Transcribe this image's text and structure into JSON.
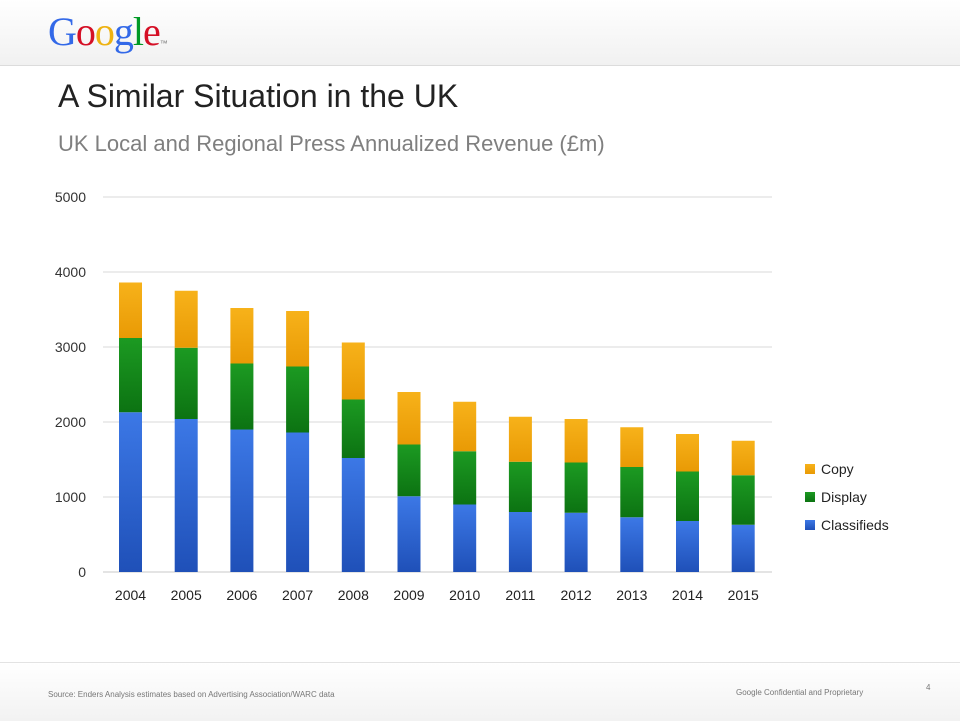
{
  "logo": {
    "letters": [
      {
        "char": "G",
        "color": "#3369e8"
      },
      {
        "char": "o",
        "color": "#d50f25"
      },
      {
        "char": "o",
        "color": "#eeb211"
      },
      {
        "char": "g",
        "color": "#3369e8"
      },
      {
        "char": "l",
        "color": "#009925"
      },
      {
        "char": "e",
        "color": "#d50f25"
      }
    ],
    "trademark": "™"
  },
  "slide": {
    "title": "A Similar Situation in the UK",
    "subtitle": "UK Local and Regional Press Annualized Revenue (£m)"
  },
  "footer": {
    "source": "Source: Enders Analysis estimates based on Advertising Association/WARC data",
    "confidential": "Google Confidential and Proprietary",
    "page_number": "4"
  },
  "chart_data": {
    "type": "bar",
    "stacked": true,
    "categories": [
      "2004",
      "2005",
      "2006",
      "2007",
      "2008",
      "2009",
      "2010",
      "2011",
      "2012",
      "2013",
      "2014",
      "2015"
    ],
    "series": [
      {
        "name": "Classifieds",
        "color": "#3366cc",
        "values": [
          2130,
          2040,
          1900,
          1860,
          1520,
          1010,
          900,
          800,
          790,
          730,
          680,
          630
        ]
      },
      {
        "name": "Display",
        "color": "#138a1a",
        "values": [
          990,
          950,
          880,
          880,
          780,
          690,
          710,
          670,
          670,
          670,
          660,
          660
        ]
      },
      {
        "name": "Copy",
        "color": "#f0a30a",
        "values": [
          740,
          760,
          740,
          740,
          760,
          700,
          660,
          600,
          580,
          530,
          500,
          460
        ]
      }
    ],
    "ylim": [
      0,
      5000
    ],
    "yticks": [
      0,
      1000,
      2000,
      3000,
      4000,
      5000
    ],
    "grid": true,
    "legend_position": "right",
    "legend_order": [
      "Copy",
      "Display",
      "Classifieds"
    ]
  }
}
